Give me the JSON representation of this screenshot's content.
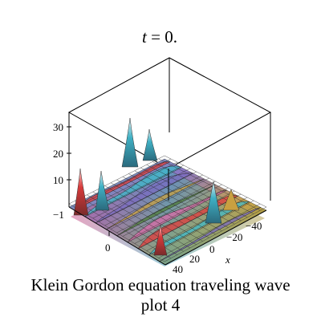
{
  "title_var": "t",
  "title_rest": " = 0.",
  "caption": {
    "line1": "Klein Gordon equation  traveling wave",
    "line2": "plot 4"
  },
  "chart_data": {
    "type": "surface3d",
    "title": "t = 0.",
    "xlabel": "x",
    "x_ticks": [
      "−40",
      "−20",
      "0",
      "20",
      "40"
    ],
    "y_ticks": [
      "−1",
      "0"
    ],
    "z_ticks": [
      "10",
      "20",
      "30"
    ],
    "zlim": [
      0,
      33
    ],
    "surface_colors": [
      "#e23b3b",
      "#3fb8c9",
      "#7a6bbf",
      "#c9a040",
      "#4f7d3a",
      "#d86aa8"
    ],
    "peaks": [
      {
        "label": "left-edge spike",
        "height": 24
      },
      {
        "label": "front spike",
        "height": 18
      },
      {
        "label": "central tall spike",
        "height": 31
      },
      {
        "label": "mid spike",
        "height": 16
      },
      {
        "label": "right spike",
        "height": 17
      },
      {
        "label": "lower spike",
        "height": 9
      }
    ]
  }
}
